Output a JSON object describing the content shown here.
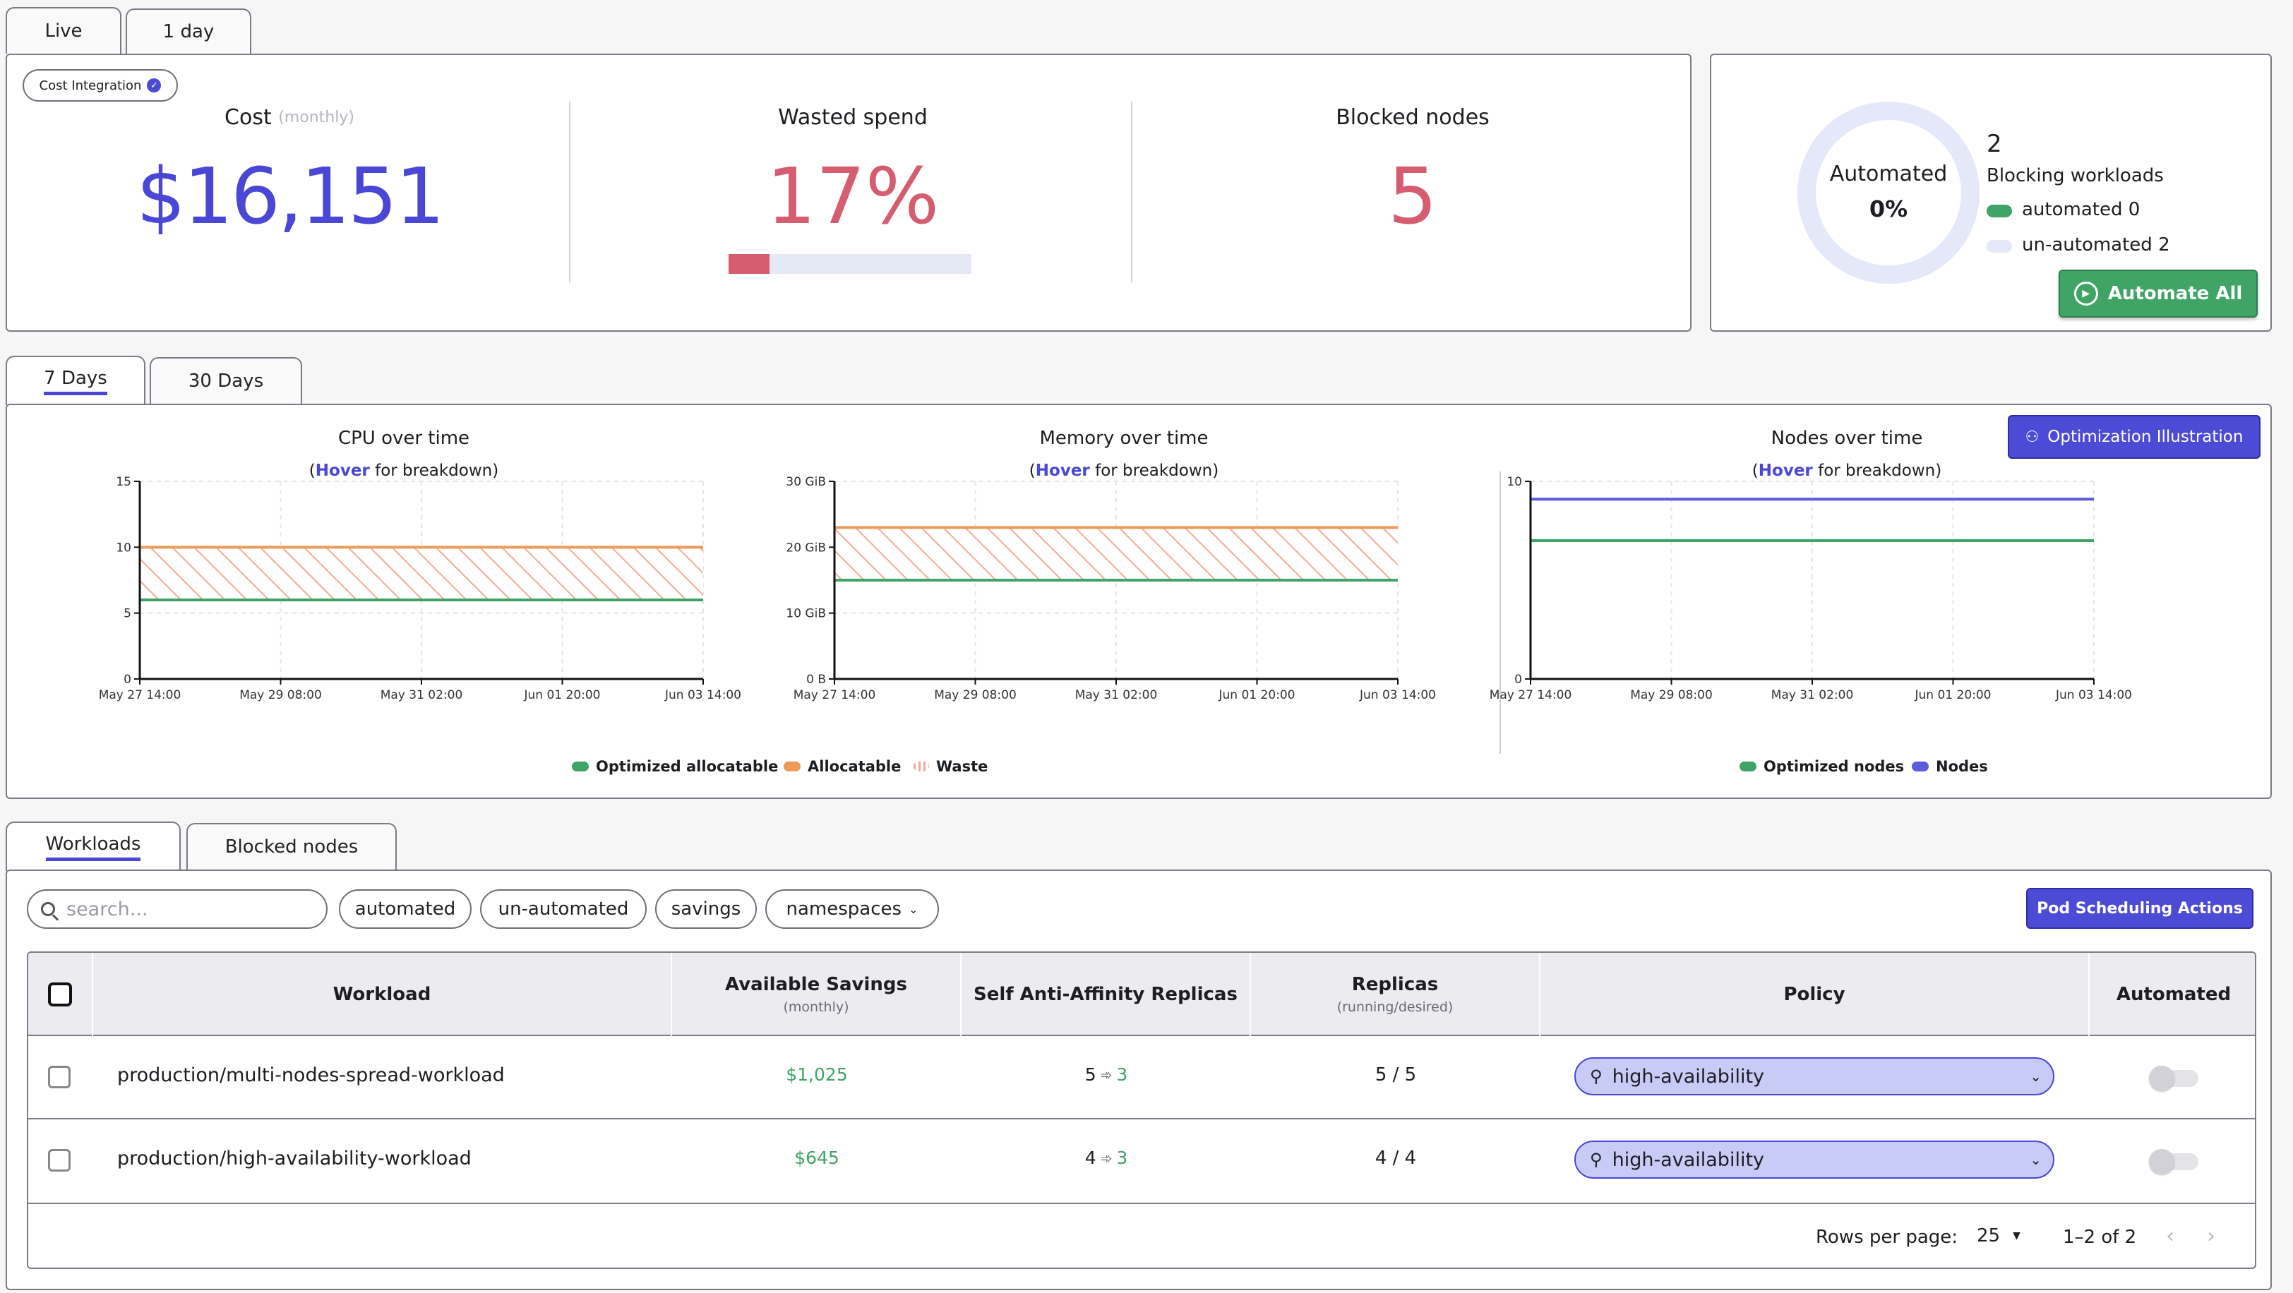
{
  "top_tabs": [
    "Live",
    "1 day"
  ],
  "cost_integration": "Cost Integration",
  "stats": {
    "cost_label": "Cost",
    "cost_suffix": "(monthly)",
    "cost_value": "$16,151",
    "wasted_label": "Wasted spend",
    "wasted_value": "17%",
    "wasted_fraction": 0.17,
    "blocked_label": "Blocked nodes",
    "blocked_value": "5"
  },
  "automation": {
    "donut_label": "Automated",
    "donut_value": "0%",
    "count": "2",
    "blocking_label": "Blocking workloads",
    "automated_legend": "automated 0",
    "unautomated_legend": "un-automated 2",
    "button": "Automate All",
    "button_icon": "play-circle-icon"
  },
  "range_tabs": [
    "7 Days",
    "30 Days"
  ],
  "optimization_button": "Optimization Illustration",
  "hover_word": "Hover",
  "hover_rest": "for breakdown)",
  "charts_legend": {
    "optimized_allocatable": "Optimized allocatable",
    "allocatable": "Allocatable",
    "waste": "Waste",
    "optimized_nodes": "Optimized nodes",
    "nodes": "Nodes"
  },
  "colors": {
    "accent": "#4c4bd5",
    "danger": "#d65c70",
    "green": "#3fa466",
    "orange": "#ef9a56",
    "nodes_blue": "#5b5be0"
  },
  "chart_data": [
    {
      "type": "area",
      "title": "CPU over time",
      "x": [
        "May 27 14:00",
        "May 29 08:00",
        "May 31 02:00",
        "Jun 01 20:00",
        "Jun 03 14:00"
      ],
      "yticks": [
        "0",
        "5",
        "10",
        "15"
      ],
      "ylim": [
        0,
        15
      ],
      "series": [
        {
          "name": "Allocatable",
          "values": [
            10,
            10,
            10,
            10,
            10
          ]
        },
        {
          "name": "Optimized allocatable",
          "values": [
            6,
            6,
            6,
            6,
            6
          ]
        }
      ]
    },
    {
      "type": "area",
      "title": "Memory over time",
      "x": [
        "May 27 14:00",
        "May 29 08:00",
        "May 31 02:00",
        "Jun 01 20:00",
        "Jun 03 14:00"
      ],
      "yticks": [
        "0 B",
        "10 GiB",
        "20 GiB",
        "30 GiB"
      ],
      "ylim": [
        0,
        30
      ],
      "series": [
        {
          "name": "Allocatable",
          "values": [
            23,
            23,
            23,
            23,
            23
          ]
        },
        {
          "name": "Optimized allocatable",
          "values": [
            15,
            15,
            15,
            15,
            15
          ]
        }
      ]
    },
    {
      "type": "line",
      "title": "Nodes over time",
      "x": [
        "May 27 14:00",
        "May 29 08:00",
        "May 31 02:00",
        "Jun 01 20:00",
        "Jun 03 14:00"
      ],
      "yticks": [
        "0",
        "10"
      ],
      "ylim": [
        0,
        10
      ],
      "series": [
        {
          "name": "Nodes",
          "values": [
            9.1,
            9.1,
            9.1,
            9.1,
            9.1
          ]
        },
        {
          "name": "Optimized nodes",
          "values": [
            7,
            7,
            7,
            7,
            7
          ]
        }
      ]
    }
  ],
  "bottom_tabs": [
    "Workloads",
    "Blocked nodes"
  ],
  "search_placeholder": "search...",
  "filters": [
    "automated",
    "un-automated",
    "savings",
    "namespaces"
  ],
  "pod_button": "Pod Scheduling Actions",
  "table": {
    "headers": {
      "workload": "Workload",
      "savings": "Available Savings",
      "savings_sub": "(monthly)",
      "anti": "Self Anti-Affinity Replicas",
      "replicas": "Replicas",
      "replicas_sub": "(running/desired)",
      "policy": "Policy",
      "automated": "Automated"
    },
    "rows": [
      {
        "workload": "production/multi-nodes-spread-workload",
        "savings": "$1,025",
        "anti_from": "5",
        "anti_to": "3",
        "replicas": "5 / 5",
        "policy": "high-availability",
        "automated": false
      },
      {
        "workload": "production/high-availability-workload",
        "savings": "$645",
        "anti_from": "4",
        "anti_to": "3",
        "replicas": "4 / 4",
        "policy": "high-availability",
        "automated": false
      }
    ]
  },
  "pagination": {
    "rows_label": "Rows per page:",
    "rows_value": "25",
    "range": "1–2 of 2"
  }
}
